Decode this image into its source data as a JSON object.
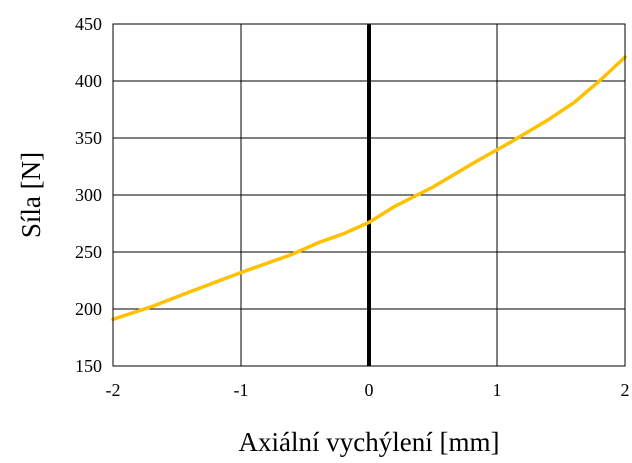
{
  "chart_data": {
    "type": "line",
    "title": "",
    "xlabel": "Axiální vychýlení [mm]",
    "ylabel": "Síla [N]",
    "xlim": [
      -2,
      2
    ],
    "ylim": [
      150,
      450
    ],
    "x_ticks": [
      -2,
      -1,
      0,
      1,
      2
    ],
    "y_ticks": [
      150,
      200,
      250,
      300,
      350,
      400,
      450
    ],
    "grid": true,
    "legend": "none",
    "series": [
      {
        "color": "#FFC000",
        "x": [
          -2,
          -1.7,
          -1.4,
          -1.0,
          -0.6,
          -0.4,
          -0.2,
          0,
          0.2,
          0.5,
          0.8,
          1.1,
          1.4,
          1.6,
          1.8,
          2.0
        ],
        "y": [
          191,
          202,
          215,
          232,
          248,
          258,
          266,
          276,
          290,
          307,
          327,
          346,
          366,
          381,
          400,
          421
        ]
      }
    ],
    "zero_line": {
      "x": 0,
      "color": "#000000"
    }
  }
}
